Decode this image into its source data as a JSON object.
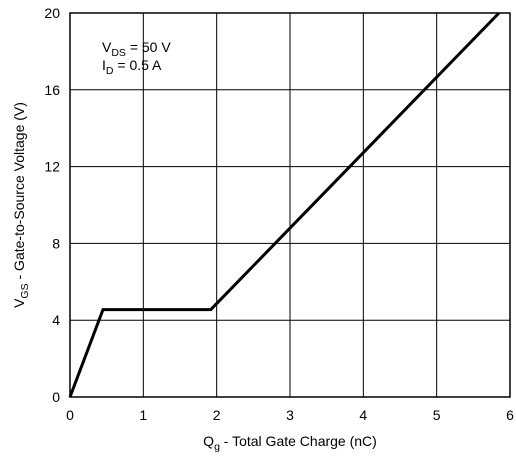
{
  "chart_data": {
    "type": "line",
    "title": "",
    "xlabel": {
      "main": "Q",
      "sub": "g",
      "rest": " - Total Gate Charge (nC)"
    },
    "ylabel": {
      "main": "V",
      "sub": "GS",
      "rest": " - Gate-to-Source Voltage (V)"
    },
    "xlim": [
      0,
      6
    ],
    "ylim": [
      0,
      20
    ],
    "x_ticks": [
      "0",
      "1",
      "2",
      "3",
      "4",
      "5",
      "6"
    ],
    "y_ticks": [
      "0",
      "4",
      "8",
      "12",
      "16",
      "20"
    ],
    "grid": true,
    "annotations": [
      {
        "main": "V",
        "sub": "DS",
        "rest": " = 50 V"
      },
      {
        "main": "I",
        "sub": "D",
        "rest": " = 0.5 A"
      }
    ],
    "series": [
      {
        "x": [
          0,
          0.45,
          1.92,
          5.85
        ],
        "y": [
          0,
          4.55,
          4.55,
          20
        ]
      }
    ]
  }
}
